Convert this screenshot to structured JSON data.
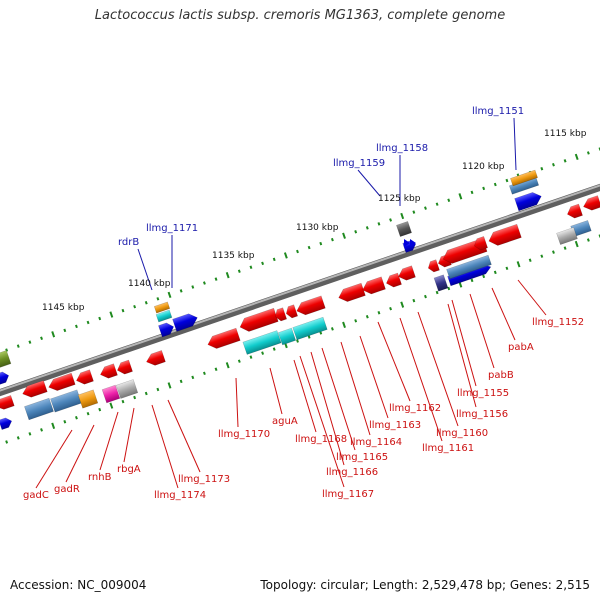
{
  "title": "Lactococcus lactis subsp. cremoris MG1363, complete genome",
  "footer": {
    "accession": "Accession: NC_009004",
    "summary": "Topology: circular; Length: 2,529,478 bp; Genes: 2,515"
  },
  "scale_labels": [
    "1145 kbp",
    "1140 kbp",
    "1135 kbp",
    "1130 kbp",
    "1125 kbp",
    "1120 kbp",
    "1115 kbp"
  ],
  "genes_above": [
    "llmg_1151",
    "llmg_1158",
    "llmg_1159",
    "rdrB",
    "llmg_1171"
  ],
  "genes_below": [
    "llmg_1152",
    "pabA",
    "pabB",
    "llmg_1155",
    "llmg_1156",
    "llmg_1160",
    "llmg_1161",
    "llmg_1162",
    "llmg_1163",
    "llmg_1164",
    "llmg_1165",
    "llmg_1166",
    "llmg_1167",
    "llmg_1168",
    "aguA",
    "llmg_1170",
    "llmg_1173",
    "llmg_1174",
    "rbgA",
    "rnhB",
    "gadR",
    "gadC"
  ],
  "colors": {
    "forward_gene": "#0000dd",
    "reverse_gene": "#ee0000",
    "label_above": "#1a1aaa",
    "label_below": "#cc1111",
    "backbone": "#777777",
    "tick": "#1f8a1f",
    "cyan_feature": "#11cccc",
    "steelblue_feature": "#4d86bb",
    "orange_feature": "#ee9910",
    "magenta_feature": "#ee22aa",
    "gray_feature": "#aaaaaa",
    "olive_feature": "#6b8e23"
  }
}
